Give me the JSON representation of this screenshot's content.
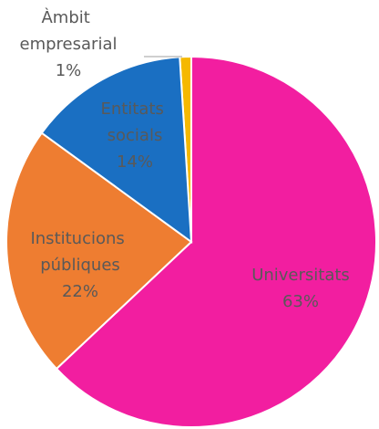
{
  "chart_data": {
    "type": "pie",
    "categories": [
      "Àmbit empresarial",
      "Universitats",
      "Institucions públiques",
      "Entitats socials"
    ],
    "values": [
      1,
      63,
      22,
      14
    ],
    "value_labels": [
      "1%",
      "63%",
      "22%",
      "14%"
    ],
    "colors": [
      "#f5b800",
      "#f21ea0",
      "#ee7d31",
      "#1a6fc2"
    ]
  }
}
